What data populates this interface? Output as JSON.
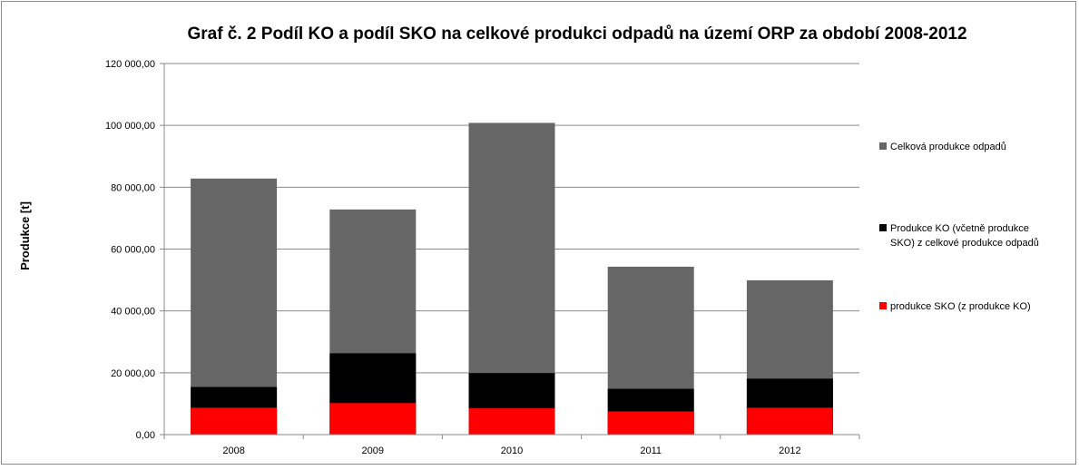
{
  "chart_data": {
    "type": "bar",
    "title": "Graf č. 2 Podíl KO a podíl SKO na celkové produkci odpadů na území ORP za období 2008-2012",
    "xlabel": "",
    "ylabel": "Produkce [t]",
    "ylim": [
      0,
      120000
    ],
    "yticks": [
      0,
      20000,
      40000,
      60000,
      80000,
      100000,
      120000
    ],
    "ytick_labels": [
      "0,00",
      "20 000,00",
      "40 000,00",
      "60 000,00",
      "80 000,00",
      "100 000,00",
      "120 000,00"
    ],
    "categories": [
      "2008",
      "2009",
      "2010",
      "2011",
      "2012"
    ],
    "grid": true,
    "legend_position": "right",
    "series": [
      {
        "name": "Celková produkce odpadů",
        "color": "#666666",
        "values": [
          82800,
          72800,
          100800,
          54300,
          49900
        ]
      },
      {
        "name": "Produkce KO (včetně produkce SKO) z celkové produkce odpadů",
        "legend_lines": [
          "Produkce KO (včetně produkce",
          "SKO) z celkové produkce odpadů"
        ],
        "color": "#000000",
        "values": [
          15400,
          26300,
          19900,
          14800,
          18100
        ]
      },
      {
        "name": "produkce SKO (z produkce KO)",
        "color": "#ff0000",
        "values": [
          8700,
          10200,
          8500,
          7500,
          8700
        ]
      }
    ]
  }
}
